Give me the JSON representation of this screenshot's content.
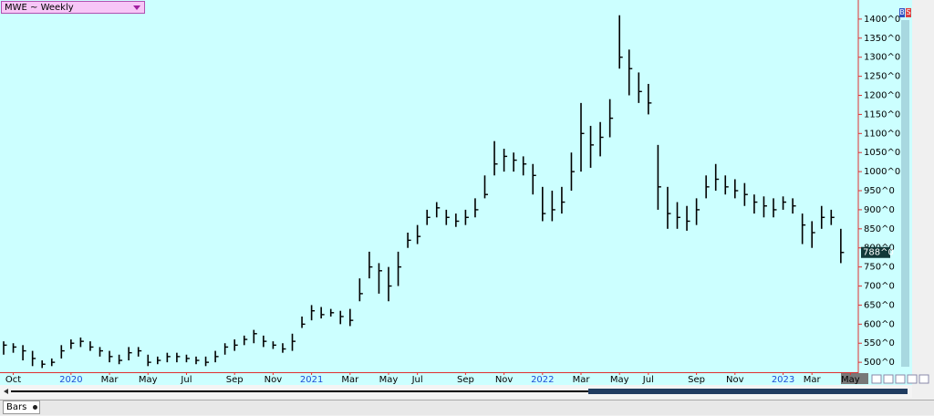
{
  "header": {
    "symbol_label": "MWE ~ Weekly"
  },
  "order_buttons": [
    "B",
    "S"
  ],
  "footer": {
    "study_label": "Bars"
  },
  "chart_data": {
    "type": "hlc",
    "categories": [
      null,
      "Oct",
      null,
      null,
      null,
      null,
      null,
      "2020",
      null,
      null,
      null,
      "Mar",
      null,
      null,
      null,
      "May",
      null,
      null,
      null,
      "Jul",
      null,
      null,
      null,
      null,
      "Sep",
      null,
      null,
      null,
      "Nov",
      null,
      null,
      null,
      "2021",
      null,
      null,
      null,
      "Mar",
      null,
      null,
      null,
      "May",
      null,
      null,
      "Jul",
      null,
      null,
      null,
      null,
      "Sep",
      null,
      null,
      null,
      "Nov",
      null,
      null,
      null,
      "2022",
      null,
      null,
      null,
      "Mar",
      null,
      null,
      null,
      "May",
      null,
      null,
      "Jul",
      null,
      null,
      null,
      null,
      "Sep",
      null,
      null,
      null,
      "Nov",
      null,
      null,
      null,
      null,
      "2023",
      null,
      null,
      "Mar",
      null,
      null,
      null,
      "May"
    ],
    "high": [
      555,
      550,
      545,
      530,
      505,
      510,
      545,
      560,
      565,
      555,
      540,
      530,
      520,
      540,
      540,
      520,
      515,
      525,
      525,
      520,
      515,
      515,
      530,
      550,
      560,
      570,
      585,
      570,
      555,
      550,
      575,
      620,
      650,
      645,
      640,
      635,
      640,
      720,
      790,
      760,
      750,
      790,
      840,
      860,
      900,
      920,
      900,
      890,
      900,
      930,
      990,
      1080,
      1060,
      1050,
      1040,
      1020,
      960,
      950,
      960,
      1050,
      1180,
      1120,
      1130,
      1190,
      1410,
      1320,
      1260,
      1230,
      1070,
      960,
      920,
      910,
      930,
      990,
      1020,
      990,
      980,
      970,
      940,
      935,
      930,
      935,
      930,
      890,
      870,
      910,
      900,
      850,
      null
    ],
    "low": [
      520,
      525,
      505,
      490,
      485,
      490,
      510,
      535,
      540,
      530,
      515,
      500,
      495,
      505,
      515,
      490,
      495,
      500,
      500,
      500,
      495,
      490,
      500,
      520,
      530,
      545,
      550,
      540,
      535,
      525,
      530,
      590,
      610,
      615,
      620,
      600,
      595,
      660,
      720,
      680,
      660,
      700,
      800,
      810,
      860,
      880,
      860,
      855,
      860,
      880,
      930,
      990,
      1000,
      1000,
      990,
      940,
      870,
      870,
      890,
      950,
      1000,
      1010,
      1040,
      1090,
      1270,
      1200,
      1180,
      1150,
      900,
      850,
      850,
      845,
      860,
      930,
      950,
      940,
      930,
      910,
      890,
      880,
      880,
      900,
      890,
      810,
      800,
      850,
      860,
      760,
      null
    ],
    "close": [
      545,
      540,
      530,
      510,
      495,
      500,
      530,
      550,
      555,
      540,
      530,
      515,
      505,
      525,
      530,
      500,
      505,
      515,
      515,
      510,
      505,
      500,
      515,
      540,
      545,
      560,
      575,
      555,
      545,
      535,
      555,
      600,
      635,
      625,
      630,
      620,
      610,
      680,
      750,
      740,
      700,
      750,
      820,
      830,
      880,
      905,
      880,
      870,
      880,
      900,
      940,
      1020,
      1040,
      1030,
      1020,
      990,
      890,
      900,
      920,
      1000,
      1100,
      1070,
      1090,
      1140,
      1300,
      1270,
      1210,
      1180,
      960,
      890,
      880,
      870,
      900,
      960,
      980,
      960,
      950,
      940,
      920,
      910,
      900,
      920,
      910,
      860,
      840,
      880,
      880,
      788,
      null
    ],
    "last_label": "788^0",
    "color": "#000000",
    "ylim": [
      474,
      1450
    ],
    "yticks": [
      {
        "value": 500,
        "label": "500^0"
      },
      {
        "value": 550,
        "label": "550^0"
      },
      {
        "value": 600,
        "label": "600^0"
      },
      {
        "value": 650,
        "label": "650^0"
      },
      {
        "value": 700,
        "label": "700^0"
      },
      {
        "value": 750,
        "label": "750^0"
      },
      {
        "value": 800,
        "label": "800^0"
      },
      {
        "value": 850,
        "label": "850^0"
      },
      {
        "value": 900,
        "label": "900^0"
      },
      {
        "value": 950,
        "label": "950^0"
      },
      {
        "value": 1000,
        "label": "1000^0"
      },
      {
        "value": 1050,
        "label": "1050^0"
      },
      {
        "value": 1100,
        "label": "1100^0"
      },
      {
        "value": 1150,
        "label": "1150^0"
      },
      {
        "value": 1200,
        "label": "1200^0"
      },
      {
        "value": 1250,
        "label": "1250^0"
      },
      {
        "value": 1300,
        "label": "1300^0"
      },
      {
        "value": 1350,
        "label": "1350^0"
      },
      {
        "value": 1400,
        "label": "1400^0"
      }
    ],
    "grid": false
  }
}
